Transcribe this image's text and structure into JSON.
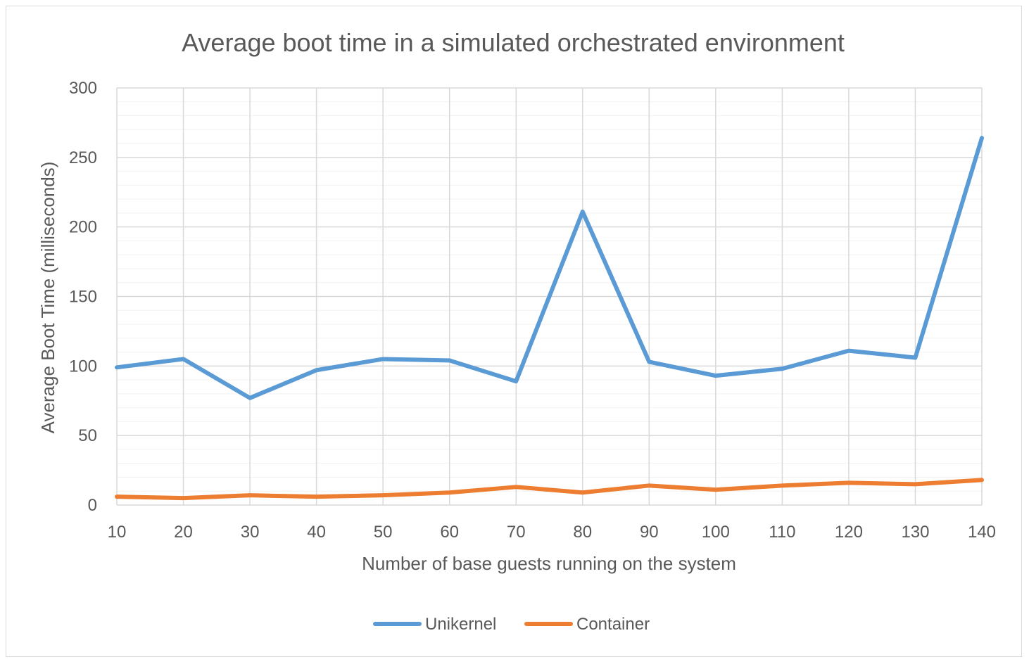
{
  "chart_data": {
    "type": "line",
    "title": "Average boot time in a simulated orchestrated environment",
    "xlabel": "Number of base guests running on the system",
    "ylabel": "Average Boot Time (milliseconds)",
    "x": [
      10,
      20,
      30,
      40,
      50,
      60,
      70,
      80,
      90,
      100,
      110,
      120,
      130,
      140
    ],
    "categories": [
      "10",
      "20",
      "30",
      "40",
      "50",
      "60",
      "70",
      "80",
      "90",
      "100",
      "110",
      "120",
      "130",
      "140"
    ],
    "ylim": [
      0,
      300
    ],
    "yticks": [
      0,
      50,
      100,
      150,
      200,
      250,
      300
    ],
    "grid": true,
    "legend_position": "bottom",
    "series": [
      {
        "name": "Unikernel",
        "color": "#5b9bd5",
        "values": [
          99,
          105,
          77,
          97,
          105,
          104,
          89,
          211,
          103,
          93,
          98,
          111,
          106,
          264
        ]
      },
      {
        "name": "Container",
        "color": "#ed7d31",
        "values": [
          6,
          5,
          7,
          6,
          7,
          9,
          13,
          9,
          14,
          11,
          14,
          16,
          15,
          18
        ]
      }
    ]
  }
}
